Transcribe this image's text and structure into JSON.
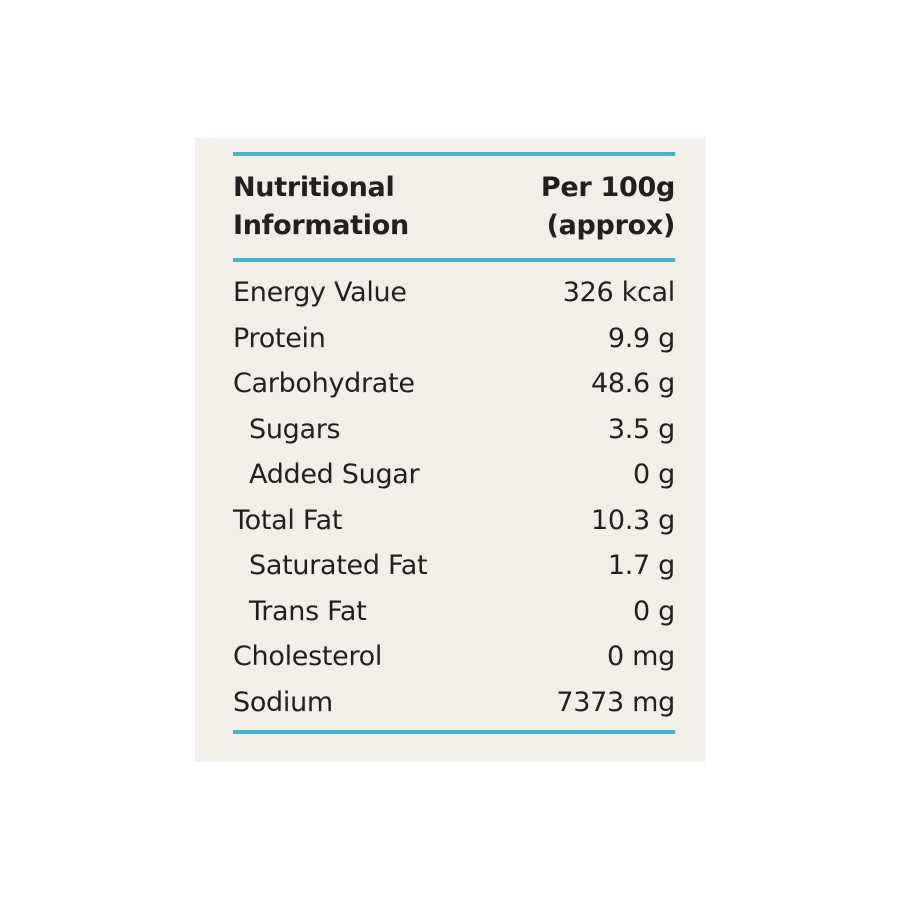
{
  "header": {
    "title_lines": [
      "Nutritional",
      "Information"
    ],
    "unit_lines": [
      "Per 100g",
      "(approx)"
    ]
  },
  "rows": [
    {
      "label": "Energy Value",
      "value": "326 kcal"
    },
    {
      "label": "Protein",
      "value": "9.9 g"
    },
    {
      "label": "Carbohydrate",
      "value": "48.6 g",
      "sub": [
        {
          "label": "Sugars",
          "value": "3.5 g"
        },
        {
          "label": "Added Sugar",
          "value": "0 g"
        }
      ]
    },
    {
      "label": "Total Fat",
      "value": "10.3 g",
      "sub": [
        {
          "label": "Saturated Fat",
          "value": "1.7 g"
        },
        {
          "label": "Trans Fat",
          "value": "0 g"
        }
      ]
    },
    {
      "label": "Cholesterol",
      "value": "0 mg"
    },
    {
      "label": "Sodium",
      "value": "7373 mg"
    }
  ]
}
